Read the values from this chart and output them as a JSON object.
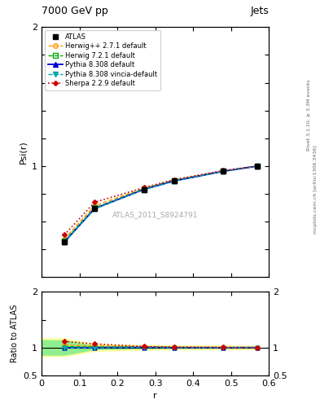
{
  "title_left": "7000 GeV pp",
  "title_right": "Jets",
  "ylabel_main": "Psi(r)",
  "ylabel_ratio": "Ratio to ATLAS",
  "xlabel": "r",
  "right_label_top": "Rivet 3.1.10, ≥ 3.3M events",
  "right_label_bot": "mcplots.cern.ch [arXiv:1306.3436]",
  "watermark": "ATLAS_2011_S8924791",
  "r_values": [
    0.06,
    0.14,
    0.27,
    0.35,
    0.48,
    0.57
  ],
  "atlas_data": [
    0.455,
    0.695,
    0.83,
    0.895,
    0.965,
    1.0
  ],
  "atlas_err_lo": [
    0.01,
    0.01,
    0.008,
    0.007,
    0.005,
    0.0
  ],
  "atlas_err_hi": [
    0.01,
    0.01,
    0.008,
    0.007,
    0.005,
    0.0
  ],
  "herwig271": [
    0.475,
    0.715,
    0.84,
    0.9,
    0.965,
    1.0
  ],
  "herwig721": [
    0.462,
    0.7,
    0.835,
    0.897,
    0.963,
    1.0
  ],
  "pythia8308": [
    0.453,
    0.694,
    0.832,
    0.893,
    0.963,
    1.0
  ],
  "pythia8308v": [
    0.452,
    0.693,
    0.831,
    0.892,
    0.963,
    1.0
  ],
  "sherpa229": [
    0.505,
    0.74,
    0.845,
    0.903,
    0.968,
    1.0
  ],
  "atlas_band_lo": [
    0.87,
    0.97,
    0.99,
    0.995,
    0.998,
    1.0
  ],
  "atlas_band_hi": [
    1.13,
    1.03,
    1.01,
    1.005,
    1.002,
    1.0
  ],
  "colors": {
    "atlas": "#000000",
    "herwig271": "#ff9900",
    "herwig721": "#00aa00",
    "pythia8308": "#0000cc",
    "pythia8308v": "#00aaaa",
    "sherpa229": "#cc0000"
  },
  "ylim_main": [
    0.2,
    2.0
  ],
  "ylim_ratio": [
    0.5,
    2.0
  ],
  "xlim": [
    0.0,
    0.6
  ],
  "band_color_green": "#90ee90",
  "band_color_yellow": "#ffff99"
}
